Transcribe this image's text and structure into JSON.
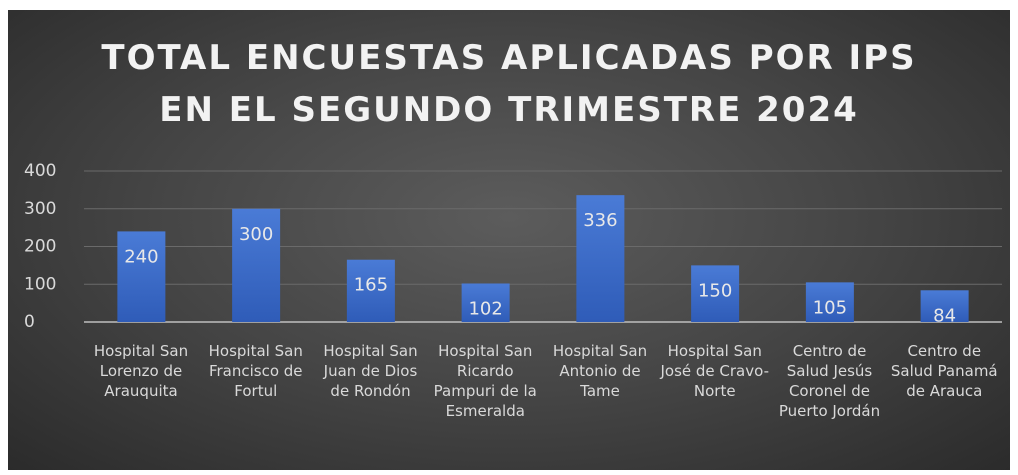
{
  "chart_data": {
    "type": "bar",
    "title": "TOTAL ENCUESTAS APLICADAS  POR IPS EN EL SEGUNDO TRIMESTRE 2024",
    "categories": [
      "Hospital San Lorenzo de Arauquita",
      "Hospital San Francisco de Fortul",
      "Hospital San Juan de Dios de Rondón",
      "Hospital San Ricardo Pampuri de la Esmeralda",
      "Hospital San Antonio de Tame",
      "Hospital San José de Cravo-Norte",
      "Centro de Salud Jesús Coronel de Puerto Jordán",
      "Centro de Salud Panamá de Arauca"
    ],
    "values": [
      240,
      300,
      165,
      102,
      336,
      150,
      105,
      84
    ],
    "color": "#3f6fcf",
    "ylim": [
      0,
      400
    ],
    "yticks": [
      0,
      100,
      200,
      300,
      400
    ],
    "grid": true
  }
}
